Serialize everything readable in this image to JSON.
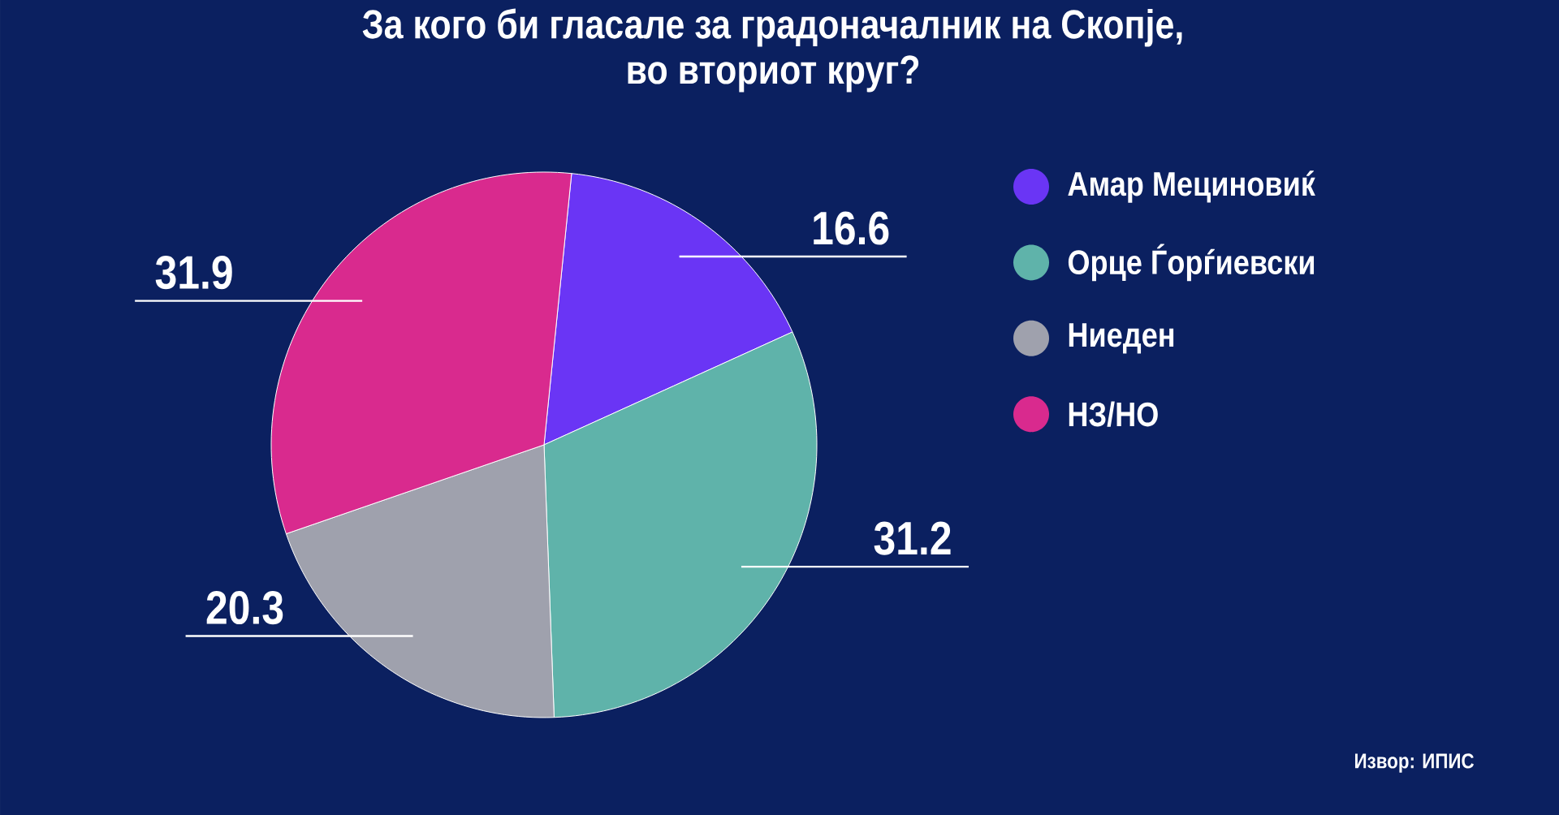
{
  "chart_data": {
    "type": "pie",
    "title": "За кого би гласале за градоначалник на Скопје, во вториот круг?",
    "categories": [
      "Амар Мециновиќ",
      "Орце Ѓорѓиевски",
      "Ниеден",
      "НЗ/НО"
    ],
    "values": [
      16.6,
      31.2,
      20.3,
      31.9
    ],
    "colors": [
      "#6a35f5",
      "#5fb3aa",
      "#9fa1ad",
      "#d92a8e"
    ],
    "data_labels": true,
    "legend": "right",
    "annotations": [
      "Извор: ИПИС"
    ]
  }
}
